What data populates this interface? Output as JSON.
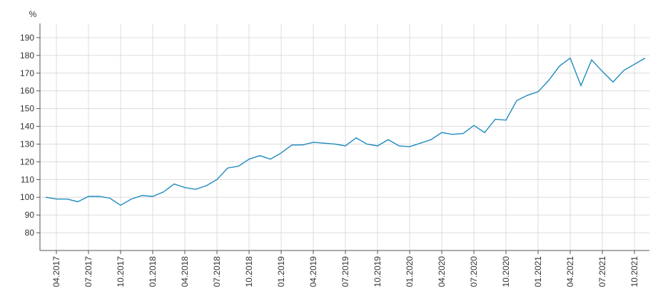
{
  "chart_data": {
    "type": "line",
    "y_label": "%",
    "categories": [
      null,
      "04.2017",
      null,
      null,
      "07.2017",
      null,
      null,
      "10.2017",
      null,
      null,
      "01.2018",
      null,
      null,
      "04.2018",
      null,
      null,
      "07.2018",
      null,
      null,
      "10.2018",
      null,
      null,
      "01.2019",
      null,
      null,
      "04.2019",
      null,
      null,
      "07.2019",
      null,
      null,
      "10.2019",
      null,
      null,
      "01.2020",
      null,
      null,
      "04.2020",
      null,
      null,
      "07.2020",
      null,
      null,
      "10.2020",
      null,
      null,
      "01.2021",
      null,
      null,
      "04.2021",
      null,
      null,
      "07.2021",
      null,
      null,
      "10.2021",
      null
    ],
    "values": [
      100,
      99,
      99,
      97.5,
      100.5,
      100.5,
      99.5,
      95.5,
      99,
      101,
      100.5,
      103,
      107.5,
      105.5,
      104.5,
      106.5,
      110,
      116.5,
      117.5,
      121.5,
      123.5,
      121.5,
      125,
      129.5,
      129.5,
      131,
      130.5,
      130,
      129,
      133.5,
      130,
      129,
      132.5,
      129,
      128.5,
      130.5,
      132.5,
      136.5,
      135.5,
      136,
      140.5,
      136.5,
      144,
      143.5,
      154.5,
      157.5,
      159.5,
      166,
      174,
      178.5,
      163,
      177.5,
      171,
      165,
      171.5,
      175,
      178.5
    ],
    "color": "#1f8bbf",
    "ylim": [
      70,
      198
    ],
    "yticks": [
      80,
      90,
      100,
      110,
      120,
      130,
      140,
      150,
      160,
      170,
      180,
      190
    ],
    "grid": true
  }
}
